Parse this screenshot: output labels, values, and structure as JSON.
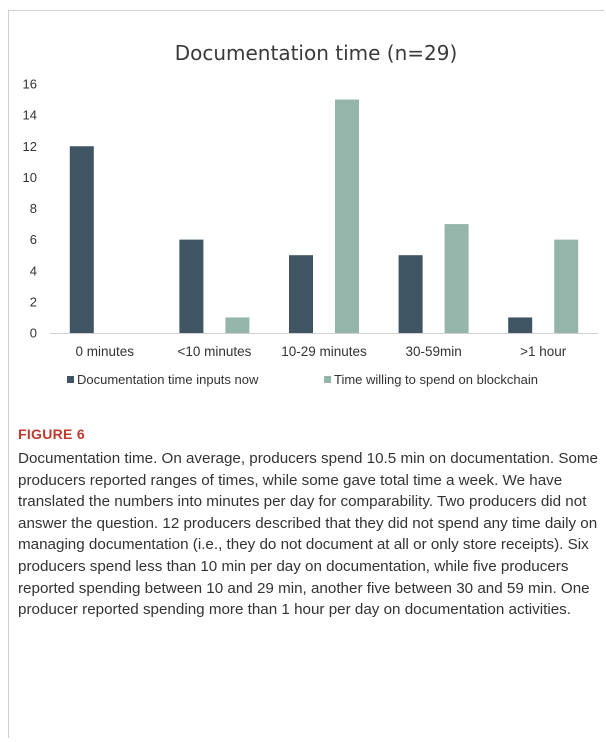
{
  "chart_data": {
    "type": "bar",
    "title": "Documentation time (n=29)",
    "categories": [
      "0 minutes",
      "<10 minutes",
      "10-29 minutes",
      "30-59min",
      ">1 hour"
    ],
    "series": [
      {
        "name": "Documentation time inputs now",
        "values": [
          12,
          6,
          5,
          5,
          1
        ],
        "color": "#3f5564"
      },
      {
        "name": "Time willing to spend on blockchain",
        "values": [
          0,
          1,
          15,
          7,
          6
        ],
        "color": "#96b5aa"
      }
    ],
    "yticks": [
      0,
      2,
      4,
      6,
      8,
      10,
      12,
      14,
      16
    ],
    "ylim": [
      0,
      16
    ],
    "grid": false,
    "legend_position": "bottom"
  },
  "figure": {
    "label": "FIGURE 6",
    "caption": "Documentation time. On average, producers spend 10.5 min on documentation. Some producers reported ranges of times, while some gave total time a week. We have translated the numbers into minutes per day for comparability. Two producers did not answer the question. 12 producers described that they did not spend any time daily on managing documentation (i.e., they do not document at all or only store receipts). Six producers spend less than 10 min per day on documentation, while five producers reported spending between 10 and 29 min, another five between 30 and 59 min. One producer reported spending more than 1 hour per day on documentation activities."
  }
}
